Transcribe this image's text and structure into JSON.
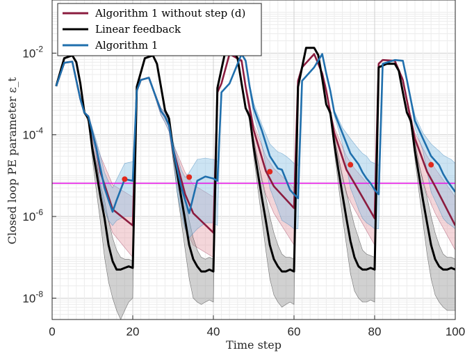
{
  "chart_data": {
    "type": "line",
    "xlabel": "Time step",
    "ylabel": "Closed loop PE parameter ε_t",
    "xlim": [
      0,
      100
    ],
    "ylim": [
      3e-09,
      0.2
    ],
    "yscale": "log",
    "grid": true,
    "legend_position": "top-left",
    "x_ticks": [
      "0",
      "20",
      "40",
      "60",
      "80",
      "100"
    ],
    "y_ticks": [
      {
        "value": 1e-08,
        "base": "10",
        "exp": "-8"
      },
      {
        "value": 1e-06,
        "base": "10",
        "exp": "-6"
      },
      {
        "value": 0.0001,
        "base": "10",
        "exp": "-4"
      },
      {
        "value": 0.01,
        "base": "10",
        "exp": "-2"
      }
    ],
    "threshold": {
      "value": 6.5e-06,
      "color": "#e619e6"
    },
    "series": [
      {
        "name": "Algorithm 1 without step (d)",
        "color": "#8b1c3f",
        "band_fill": "#e6a3ad",
        "x": [
          1,
          3,
          5,
          7,
          8,
          9,
          11,
          12,
          15,
          20,
          21,
          22,
          24,
          27,
          28,
          29,
          30,
          33,
          35,
          40,
          41,
          42,
          44,
          47,
          48,
          49,
          50,
          53,
          55,
          60,
          61,
          62,
          65,
          67,
          68,
          69,
          70,
          73,
          75,
          80,
          81,
          82,
          85,
          87,
          88,
          89,
          90,
          93,
          95,
          100
        ],
        "y": [
          0.00155,
          0.0058,
          0.0062,
          0.00075,
          0.00035,
          0.00028,
          4.5e-05,
          1.2e-05,
          1.5e-06,
          6e-07,
          0.0012,
          0.0022,
          0.0025,
          0.00038,
          0.00028,
          0.00017,
          4.5e-05,
          3.5e-06,
          1.2e-06,
          4e-07,
          0.0011,
          0.0018,
          0.0095,
          0.0065,
          0.0015,
          0.00045,
          0.00013,
          1.3e-05,
          5.5e-06,
          1.6e-06,
          0.0021,
          0.0045,
          0.0095,
          0.0032,
          0.0012,
          0.00035,
          0.00011,
          1.4e-05,
          6.5e-06,
          9e-07,
          0.0055,
          0.0068,
          0.0065,
          0.0022,
          0.0007,
          0.00022,
          8e-05,
          1.25e-05,
          5.5e-06,
          6e-07
        ],
        "band_low": [
          0.00155,
          0.0058,
          0.0062,
          0.00075,
          0.00035,
          0.00025,
          2.5e-05,
          3e-06,
          4e-07,
          1e-07,
          0.0012,
          0.0022,
          0.0025,
          0.0003,
          0.0002,
          0.00012,
          2.5e-05,
          5e-07,
          2e-07,
          1e-07,
          0.0011,
          0.0018,
          0.0095,
          0.006,
          0.0012,
          0.0003,
          6e-05,
          3.5e-06,
          1.2e-06,
          2e-07,
          0.0021,
          0.0045,
          0.0095,
          0.003,
          0.001,
          0.0003,
          6e-05,
          3.5e-06,
          1.5e-06,
          2e-07,
          0.0055,
          0.0068,
          0.0065,
          0.002,
          0.0006,
          0.00015,
          4e-05,
          3.5e-06,
          1.2e-06,
          1.5e-07
        ],
        "band_high": [
          0.00155,
          0.0058,
          0.0062,
          0.00075,
          0.00035,
          0.0003,
          6e-05,
          3e-05,
          6e-06,
          3e-06,
          0.0012,
          0.0022,
          0.0025,
          0.00045,
          0.00035,
          0.00022,
          6e-05,
          1.2e-05,
          6e-06,
          3e-06,
          0.0011,
          0.0018,
          0.0095,
          0.007,
          0.0018,
          0.0006,
          0.00018,
          3e-05,
          1.5e-05,
          5e-06,
          0.0021,
          0.0045,
          0.0095,
          0.0035,
          0.0014,
          0.0004,
          0.00015,
          3e-05,
          1.5e-05,
          4e-06,
          0.0055,
          0.0068,
          0.0065,
          0.0025,
          0.0008,
          0.0003,
          0.00011,
          3e-05,
          1.5e-05,
          3e-06
        ]
      },
      {
        "name": "Linear feedback",
        "color": "#000000",
        "band_fill": "#9a9a9a",
        "x": [
          1,
          3,
          5,
          6,
          7,
          8,
          9,
          10,
          11,
          12,
          13,
          14,
          15,
          16,
          17,
          18,
          19,
          20,
          21,
          23,
          25,
          26,
          27,
          28,
          29,
          30,
          31,
          32,
          33,
          34,
          35,
          36,
          37,
          38,
          39,
          40,
          41,
          43,
          45,
          46,
          47,
          48,
          49,
          50,
          51,
          52,
          53,
          54,
          55,
          56,
          57,
          58,
          59,
          60,
          61,
          63,
          65,
          66,
          67,
          68,
          69,
          70,
          71,
          72,
          73,
          74,
          75,
          76,
          77,
          78,
          79,
          80,
          81,
          83,
          85,
          86,
          87,
          88,
          89,
          90,
          91,
          92,
          93,
          94,
          95,
          96,
          97,
          98,
          99,
          100
        ],
        "y": [
          0.00155,
          0.0075,
          0.0088,
          0.006,
          0.0018,
          0.00035,
          0.00025,
          4.5e-05,
          1.2e-05,
          3e-06,
          9e-07,
          2e-07,
          8e-08,
          5e-08,
          5e-08,
          5.5e-08,
          6e-08,
          5.5e-08,
          0.0015,
          0.0075,
          0.0088,
          0.0055,
          0.0015,
          0.0004,
          0.00025,
          4.5e-05,
          1.2e-05,
          3e-06,
          8e-07,
          2e-07,
          9e-08,
          6e-08,
          4.5e-08,
          4.5e-08,
          5e-08,
          4.5e-08,
          0.0014,
          0.0115,
          0.0115,
          0.0075,
          0.0018,
          0.00045,
          0.00028,
          5e-05,
          1.2e-05,
          3e-06,
          8e-07,
          2e-07,
          9e-08,
          6e-08,
          4.5e-08,
          4.5e-08,
          5e-08,
          4.5e-08,
          0.0015,
          0.0135,
          0.0135,
          0.009,
          0.0024,
          0.00055,
          0.00035,
          6e-05,
          1.4e-05,
          3.5e-06,
          9e-07,
          2.5e-07,
          1e-07,
          6e-08,
          5e-08,
          5e-08,
          5.5e-08,
          5e-08,
          0.0045,
          0.0055,
          0.0055,
          0.0037,
          0.0011,
          0.00035,
          0.00022,
          4e-05,
          1e-05,
          2.5e-06,
          7e-07,
          2e-07,
          9e-08,
          6e-08,
          5e-08,
          5e-08,
          5.5e-08,
          5e-08
        ],
        "band_low": [
          0.00155,
          0.0075,
          0.0088,
          0.006,
          0.0018,
          0.00035,
          0.0002,
          2.5e-05,
          4e-06,
          7e-07,
          1e-07,
          2.5e-08,
          1e-08,
          5e-09,
          3e-09,
          5e-09,
          8e-09,
          1e-08,
          0.0015,
          0.0075,
          0.0088,
          0.0055,
          0.0015,
          0.0004,
          0.0002,
          2.5e-05,
          4e-06,
          8e-07,
          1.5e-07,
          3e-08,
          1e-08,
          8e-09,
          7e-09,
          8e-09,
          9e-09,
          8e-09,
          0.0014,
          0.0115,
          0.0115,
          0.0075,
          0.0018,
          0.00045,
          0.00022,
          3e-05,
          5e-06,
          9e-07,
          1.5e-07,
          3e-08,
          1.2e-08,
          8e-09,
          6e-09,
          7e-09,
          8e-09,
          7e-09,
          0.0015,
          0.0135,
          0.0135,
          0.009,
          0.0024,
          0.00055,
          0.00028,
          4e-05,
          6e-06,
          1e-06,
          2e-07,
          4e-08,
          1.5e-08,
          1e-08,
          8e-09,
          8e-09,
          9e-09,
          8e-09,
          0.0045,
          0.0055,
          0.0055,
          0.0037,
          0.0011,
          0.00035,
          0.00017,
          2.5e-05,
          4e-06,
          7e-07,
          1.2e-07,
          3e-08,
          1.2e-08,
          8e-09,
          6e-09,
          5e-09,
          5e-09,
          5e-09
        ],
        "band_high": [
          0.00155,
          0.0075,
          0.0088,
          0.006,
          0.0018,
          0.00035,
          0.0003,
          6e-05,
          2e-05,
          6e-06,
          2.5e-06,
          8e-07,
          3e-07,
          1.5e-07,
          1e-07,
          9e-08,
          9e-08,
          8e-08,
          0.0015,
          0.0075,
          0.0088,
          0.0055,
          0.0015,
          0.0004,
          0.0003,
          6e-05,
          2e-05,
          6e-06,
          2.5e-06,
          8e-07,
          3e-07,
          1.5e-07,
          1e-07,
          9e-08,
          1e-07,
          9e-08,
          0.0014,
          0.0115,
          0.0115,
          0.0075,
          0.0018,
          0.00045,
          0.00035,
          8e-05,
          2.5e-05,
          8e-06,
          3e-06,
          1e-06,
          4e-07,
          2e-07,
          1.2e-07,
          1e-07,
          1e-07,
          9e-08,
          0.0015,
          0.0135,
          0.0135,
          0.009,
          0.0024,
          0.00055,
          0.00042,
          9e-05,
          3e-05,
          1e-05,
          4e-06,
          1.5e-06,
          6e-07,
          3e-07,
          1.5e-07,
          1.2e-07,
          1.1e-07,
          1e-07,
          0.0045,
          0.0055,
          0.0055,
          0.0037,
          0.0011,
          0.00035,
          0.0003,
          7e-05,
          2e-05,
          7e-06,
          3e-06,
          1e-06,
          4e-07,
          2e-07,
          1.2e-07,
          1e-07,
          1e-07,
          9e-08
        ]
      },
      {
        "name": "Algorithm 1",
        "color": "#1f6fad",
        "band_fill": "#8fc3e4",
        "x": [
          1,
          3,
          5,
          7,
          8,
          9,
          11,
          12,
          13,
          14,
          15,
          16,
          18,
          20,
          21,
          22,
          24,
          27,
          28,
          29,
          30,
          31,
          32,
          33,
          34,
          36,
          38,
          40,
          41,
          42,
          44,
          47,
          48,
          49,
          50,
          52,
          54,
          56,
          57,
          58,
          59,
          60,
          61,
          62,
          65,
          67,
          68,
          69,
          70,
          72,
          74,
          76,
          77,
          78,
          79,
          80,
          81,
          82,
          85,
          87,
          88,
          89,
          90,
          92,
          94,
          96,
          97,
          98,
          99,
          100
        ],
        "y": [
          0.00155,
          0.0058,
          0.0062,
          0.00075,
          0.00035,
          0.00028,
          4.5e-05,
          1.5e-05,
          5e-06,
          2.5e-06,
          1.3e-06,
          2.5e-06,
          8.2e-06,
          7.5e-06,
          0.0012,
          0.0022,
          0.0025,
          0.00038,
          0.00028,
          0.00017,
          4.5e-05,
          1.5e-05,
          5.5e-06,
          2.5e-06,
          1.2e-06,
          7.5e-06,
          9.5e-06,
          8.5e-06,
          7.5e-06,
          0.0011,
          0.0018,
          0.0095,
          0.0065,
          0.0015,
          0.00045,
          0.00013,
          3e-05,
          1.5e-05,
          1.4e-05,
          8e-06,
          4.5e-06,
          3.5e-06,
          2.8e-06,
          0.0021,
          0.0045,
          0.0095,
          0.0032,
          0.0012,
          0.00035,
          0.00011,
          3.5e-05,
          1.9e-05,
          1.2e-05,
          8.5e-06,
          6.5e-06,
          4.5e-06,
          3.5e-06,
          0.0055,
          0.0068,
          0.0065,
          0.0022,
          0.0007,
          0.00022,
          8e-05,
          3e-05,
          1.8e-05,
          1.1e-05,
          7.5e-06,
          5.5e-06,
          4e-06
        ],
        "band_low": [
          0.00155,
          0.0058,
          0.0062,
          0.00075,
          0.00035,
          0.00025,
          3e-05,
          5e-06,
          1.5e-06,
          8e-07,
          6e-07,
          8e-07,
          1e-06,
          1e-06,
          0.0012,
          0.0022,
          0.0025,
          0.0003,
          0.0002,
          0.00012,
          3e-05,
          4e-06,
          1.2e-06,
          5e-07,
          3e-07,
          5e-07,
          7e-07,
          7e-07,
          6e-07,
          0.0011,
          0.0018,
          0.0095,
          0.006,
          0.0012,
          0.0003,
          6e-05,
          5e-06,
          1.5e-06,
          8e-07,
          7e-07,
          6e-07,
          5e-07,
          5e-07,
          0.0021,
          0.0045,
          0.0095,
          0.003,
          0.001,
          0.0003,
          6e-05,
          5e-06,
          1.5e-06,
          9e-07,
          7e-07,
          6e-07,
          5e-07,
          5e-07,
          0.0055,
          0.0068,
          0.0065,
          0.002,
          0.0006,
          0.00015,
          4e-05,
          4e-06,
          1.5e-06,
          9e-07,
          7e-07,
          6e-07,
          5e-07
        ],
        "band_high": [
          0.00155,
          0.0058,
          0.0062,
          0.00075,
          0.00035,
          0.0003,
          7e-05,
          3e-05,
          1.2e-05,
          7e-06,
          5e-06,
          8e-06,
          2e-05,
          2.2e-05,
          0.0012,
          0.0022,
          0.0025,
          0.00045,
          0.00035,
          0.00022,
          7e-05,
          3e-05,
          1.4e-05,
          9e-06,
          1.2e-05,
          2.5e-05,
          2.7e-05,
          2.5e-05,
          2.2e-05,
          0.0011,
          0.0018,
          0.0095,
          0.007,
          0.0018,
          0.0006,
          0.00018,
          6e-05,
          3.8e-05,
          3.5e-05,
          3e-05,
          2.5e-05,
          2e-05,
          1.8e-05,
          0.0021,
          0.0045,
          0.0095,
          0.0035,
          0.0014,
          0.0004,
          0.00015,
          8e-05,
          4.5e-05,
          3.5e-05,
          3e-05,
          2.2e-05,
          2e-05,
          1.8e-05,
          0.0055,
          0.0068,
          0.0065,
          0.0025,
          0.0008,
          0.0003,
          0.00011,
          6e-05,
          4e-05,
          3.2e-05,
          2.8e-05,
          2.5e-05,
          2e-05
        ]
      }
    ],
    "markers": {
      "color": "#e0291d",
      "points": [
        {
          "x": 18,
          "y": 8.2e-06
        },
        {
          "x": 34,
          "y": 9.2e-06
        },
        {
          "x": 54,
          "y": 1.25e-05
        },
        {
          "x": 74,
          "y": 1.85e-05
        },
        {
          "x": 94,
          "y": 1.85e-05
        }
      ]
    }
  }
}
